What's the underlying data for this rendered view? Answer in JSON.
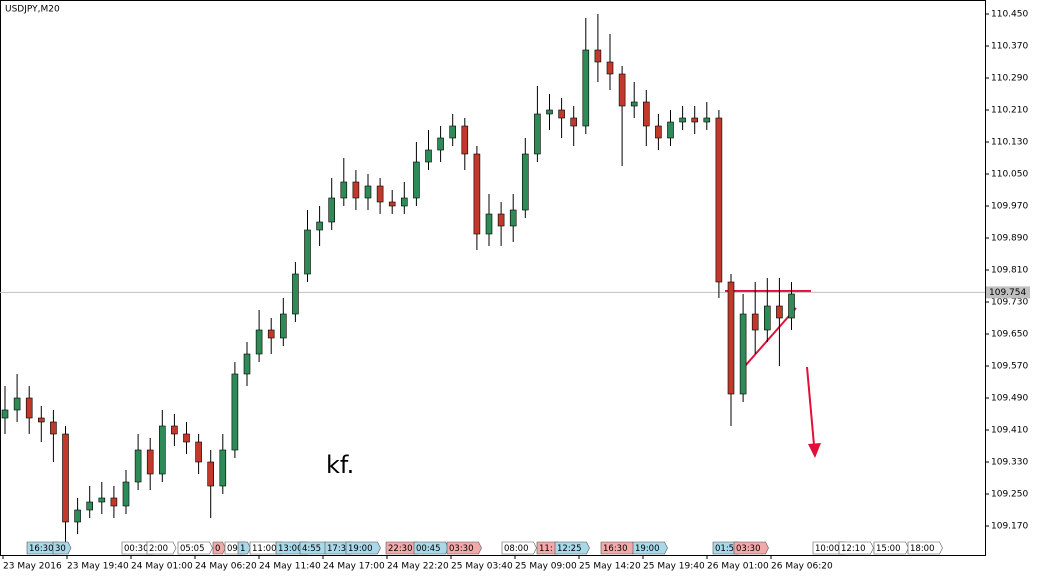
{
  "chart_data": {
    "type": "candlestick",
    "title": "USDJPY,M20",
    "annotation": "kf.",
    "up_color": "#2e8b57",
    "down_color": "#c0392b",
    "wick_color": "#000000",
    "ylim": [
      109.0975,
      110.485
    ],
    "yticks": [
      {
        "value": 110.45,
        "label": "110.450"
      },
      {
        "value": 110.37,
        "label": "110.370"
      },
      {
        "value": 110.29,
        "label": "110.290"
      },
      {
        "value": 110.21,
        "label": "110.210"
      },
      {
        "value": 110.13,
        "label": "110.130"
      },
      {
        "value": 110.05,
        "label": "110.050"
      },
      {
        "value": 109.97,
        "label": "109.970"
      },
      {
        "value": 109.89,
        "label": "109.890"
      },
      {
        "value": 109.81,
        "label": "109.810"
      },
      {
        "value": 109.73,
        "label": "109.730"
      },
      {
        "value": 109.65,
        "label": "109.650"
      },
      {
        "value": 109.57,
        "label": "109.570"
      },
      {
        "value": 109.49,
        "label": "109.490"
      },
      {
        "value": 109.41,
        "label": "109.410"
      },
      {
        "value": 109.33,
        "label": "109.330"
      },
      {
        "value": 109.25,
        "label": "109.250"
      },
      {
        "value": 109.17,
        "label": "109.170"
      }
    ],
    "price_line": {
      "value": 109.754,
      "color": "#c0c0c0"
    },
    "xlabels": [
      "23 May 2016",
      "23 May 19:40",
      "24 May 01:00",
      "24 May 06:20",
      "24 May 11:40",
      "24 May 17:00",
      "24 May 22:20",
      "25 May 03:40",
      "25 May 09:00",
      "25 May 14:20",
      "25 May 19:40",
      "26 May 01:00",
      "26 May 06:20"
    ],
    "open": [
      109.44,
      109.46,
      109.49,
      109.44,
      109.43,
      109.4,
      109.18,
      109.21,
      109.23,
      109.24,
      109.22,
      109.28,
      109.36,
      109.3,
      109.42,
      109.4,
      109.38,
      109.33,
      109.27,
      109.36,
      109.55,
      109.6,
      109.66,
      109.64,
      109.7,
      109.8,
      109.91,
      109.93,
      109.99,
      110.03,
      109.99,
      110.02,
      109.98,
      109.97,
      109.99,
      110.08,
      110.11,
      110.14,
      110.17,
      110.1,
      109.9,
      109.95,
      109.92,
      109.96,
      110.1,
      110.2,
      110.21,
      110.19,
      110.17,
      110.36,
      110.33,
      110.3,
      110.22,
      110.23,
      110.17,
      110.14,
      110.18,
      110.19,
      110.18,
      110.19,
      109.78,
      109.5,
      109.7,
      109.66,
      109.72,
      109.69
    ],
    "high": [
      109.52,
      109.55,
      109.52,
      109.47,
      109.46,
      109.42,
      109.24,
      109.27,
      109.28,
      109.27,
      109.31,
      109.4,
      109.39,
      109.46,
      109.45,
      109.43,
      109.4,
      109.36,
      109.4,
      109.58,
      109.63,
      109.71,
      109.69,
      109.74,
      109.83,
      109.96,
      109.97,
      110.04,
      110.09,
      110.06,
      110.05,
      110.04,
      110.01,
      110.03,
      110.13,
      110.16,
      110.17,
      110.2,
      110.19,
      110.12,
      110.0,
      109.98,
      110.0,
      110.14,
      110.27,
      110.25,
      110.24,
      110.22,
      110.44,
      110.45,
      110.4,
      110.32,
      110.28,
      110.26,
      110.2,
      110.21,
      110.22,
      110.22,
      110.23,
      110.21,
      109.8,
      109.75,
      109.78,
      109.79,
      109.79,
      109.78
    ],
    "low": [
      109.4,
      109.43,
      109.4,
      109.38,
      109.33,
      109.13,
      109.15,
      109.19,
      109.2,
      109.19,
      109.2,
      109.26,
      109.26,
      109.28,
      109.37,
      109.35,
      109.3,
      109.19,
      109.25,
      109.34,
      109.52,
      109.58,
      109.6,
      109.62,
      109.68,
      109.78,
      109.87,
      109.91,
      109.97,
      109.96,
      109.96,
      109.95,
      109.95,
      109.95,
      109.97,
      110.06,
      110.08,
      110.12,
      110.06,
      109.86,
      109.87,
      109.87,
      109.88,
      109.94,
      110.08,
      110.16,
      110.14,
      110.12,
      110.15,
      110.28,
      110.26,
      110.07,
      110.19,
      110.12,
      110.11,
      110.12,
      110.16,
      110.15,
      110.16,
      109.74,
      109.42,
      109.48,
      109.6,
      109.63,
      109.57,
      109.66
    ],
    "close": [
      109.46,
      109.49,
      109.44,
      109.43,
      109.4,
      109.18,
      109.21,
      109.23,
      109.24,
      109.22,
      109.28,
      109.36,
      109.3,
      109.42,
      109.4,
      109.38,
      109.33,
      109.27,
      109.36,
      109.55,
      109.6,
      109.66,
      109.64,
      109.7,
      109.8,
      109.91,
      109.93,
      109.99,
      110.03,
      109.99,
      110.02,
      109.98,
      109.97,
      109.99,
      110.08,
      110.11,
      110.14,
      110.17,
      110.1,
      109.9,
      109.95,
      109.92,
      109.96,
      110.1,
      110.2,
      110.21,
      110.19,
      110.17,
      110.36,
      110.33,
      110.3,
      110.22,
      110.23,
      110.17,
      110.14,
      110.18,
      110.19,
      110.18,
      110.19,
      109.78,
      109.5,
      109.7,
      109.66,
      109.72,
      109.69,
      109.75
    ],
    "events": [
      {
        "label": "16:30",
        "color": "#a9d8e8"
      },
      {
        "label": "30",
        "color": "#a9d8e8"
      },
      {
        "label": "00:30",
        "color": "#ffffff"
      },
      {
        "label": "2:00",
        "color": "#ffffff"
      },
      {
        "label": "05:05",
        "color": "#ffffff"
      },
      {
        "label": "0",
        "color": "#f2a9a9"
      },
      {
        "label": "09:",
        "color": "#ffffff"
      },
      {
        "label": "1",
        "color": "#a9d8e8"
      },
      {
        "label": "11:00",
        "color": "#ffffff"
      },
      {
        "label": "13:00",
        "color": "#a9d8e8"
      },
      {
        "label": "4:55",
        "color": "#a9d8e8"
      },
      {
        "label": "17:3",
        "color": "#a9d8e8"
      },
      {
        "label": "19:00",
        "color": "#a9d8e8"
      },
      {
        "label": "22:30",
        "color": "#f2a9a9"
      },
      {
        "label": "00:45",
        "color": "#a9d8e8"
      },
      {
        "label": "03:30",
        "color": "#f2a9a9"
      },
      {
        "label": "08:00",
        "color": "#ffffff"
      },
      {
        "label": "11:",
        "color": "#f2a9a9"
      },
      {
        "label": "12:25",
        "color": "#a9d8e8"
      },
      {
        "label": "16:30",
        "color": "#f2a9a9"
      },
      {
        "label": "19:00",
        "color": "#a9d8e8"
      },
      {
        "label": "01:5",
        "color": "#a9d8e8"
      },
      {
        "label": "03:30",
        "color": "#f2a9a9"
      },
      {
        "label": "10:00",
        "color": "#ffffff"
      },
      {
        "label": "12:10",
        "color": "#ffffff"
      },
      {
        "label": "15:00",
        "color": "#ffffff"
      },
      {
        "label": "18:00",
        "color": "#ffffff"
      }
    ]
  }
}
